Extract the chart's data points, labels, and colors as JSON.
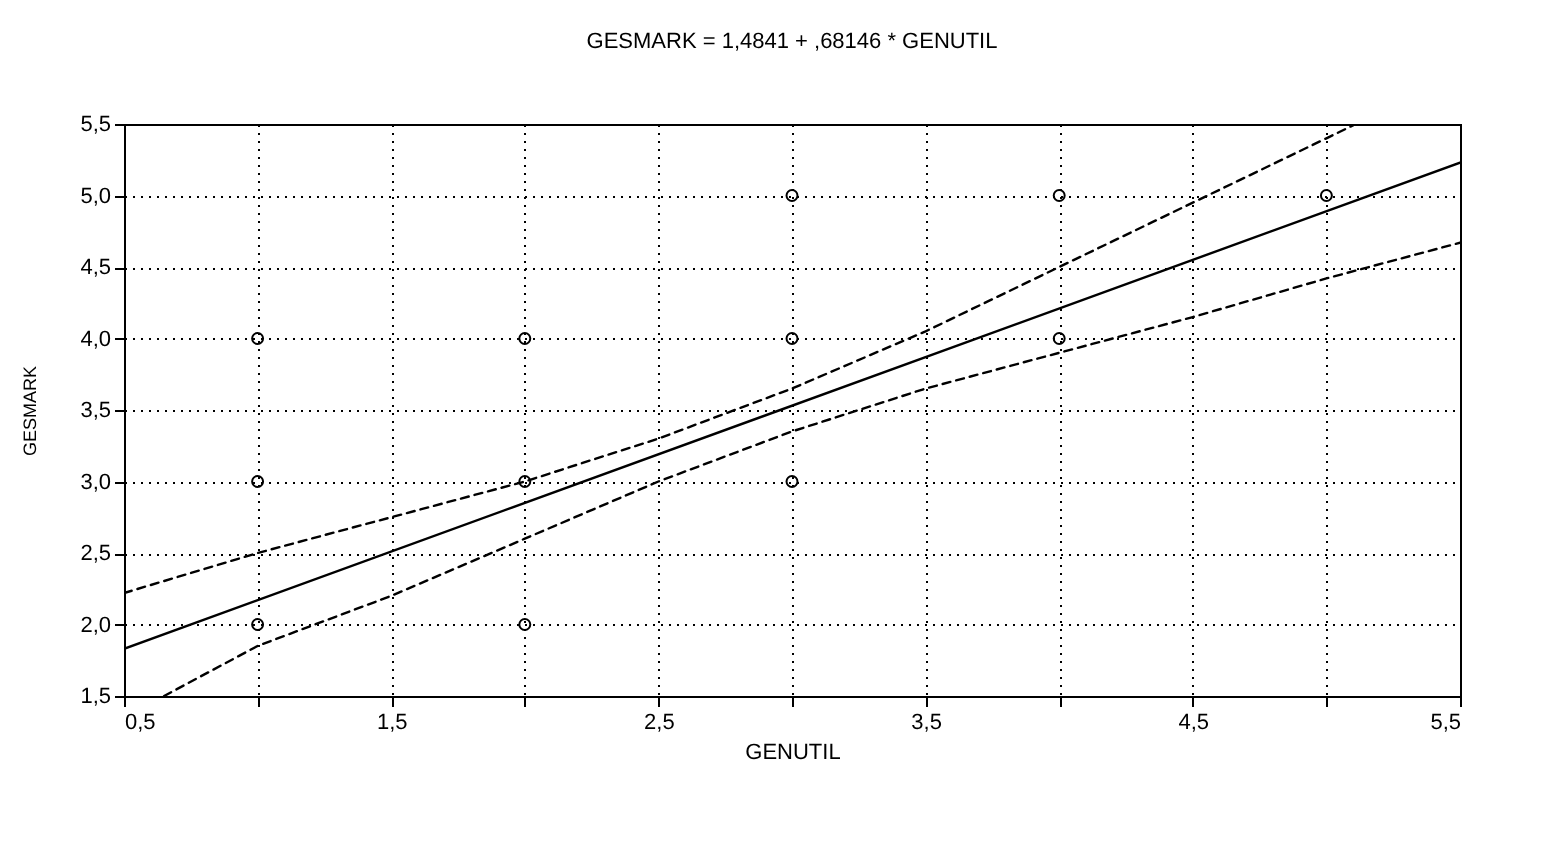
{
  "chart_data": {
    "type": "scatter",
    "title": "GESMARK = 1,4841 + ,68146 * GENUTIL",
    "xlabel": "GENUTIL",
    "ylabel": "GESMARK",
    "xlim": [
      0.5,
      5.5
    ],
    "ylim": [
      1.5,
      5.5
    ],
    "xticks": [
      {
        "value": 0.5,
        "label": "0,5"
      },
      {
        "value": 1,
        "label": null
      },
      {
        "value": 1.5,
        "label": "1,5"
      },
      {
        "value": 2,
        "label": null
      },
      {
        "value": 2.5,
        "label": "2,5"
      },
      {
        "value": 3,
        "label": null
      },
      {
        "value": 3.5,
        "label": "3,5"
      },
      {
        "value": 4,
        "label": null
      },
      {
        "value": 4.5,
        "label": "4,5"
      },
      {
        "value": 5,
        "label": null
      },
      {
        "value": 5.5,
        "label": "5,5"
      }
    ],
    "yticks": [
      {
        "value": 1.5,
        "label": "1,5"
      },
      {
        "value": 2,
        "label": "2,0"
      },
      {
        "value": 2.5,
        "label": "2,5"
      },
      {
        "value": 3,
        "label": "3,0"
      },
      {
        "value": 3.5,
        "label": "3,5"
      },
      {
        "value": 4,
        "label": "4,0"
      },
      {
        "value": 4.5,
        "label": "4,5"
      },
      {
        "value": 5,
        "label": "5,0"
      },
      {
        "value": 5.5,
        "label": "5,5"
      }
    ],
    "grid": true,
    "marker": "circle",
    "series": [
      {
        "color": "#000000",
        "x": [
          1,
          1,
          1,
          2,
          2,
          2,
          3,
          3,
          3,
          4,
          4,
          5
        ],
        "values": [
          2,
          3,
          4,
          2,
          3,
          4,
          3,
          4,
          5,
          4,
          5,
          5
        ]
      },
      {
        "type": "line",
        "marker": "none",
        "color": "#000000",
        "line_style": "solid",
        "x": [
          0.5,
          5.5
        ],
        "values": [
          1.83,
          5.23
        ]
      },
      {
        "type": "line",
        "marker": "none",
        "color": "#000000",
        "line_style": "dashed",
        "x": [
          0.5,
          1,
          1.5,
          2,
          2.5,
          3,
          3.5,
          4,
          4.5,
          5,
          5.11
        ],
        "values": [
          2.22,
          2.5,
          2.75,
          3.0,
          3.3,
          3.65,
          4.05,
          4.5,
          4.95,
          5.4,
          5.5
        ]
      },
      {
        "type": "line",
        "marker": "none",
        "color": "#000000",
        "line_style": "dashed",
        "x": [
          0.65,
          1,
          1.5,
          2,
          2.5,
          3,
          3.5,
          4,
          4.5,
          5,
          5.5
        ],
        "values": [
          1.5,
          1.85,
          2.2,
          2.6,
          3.0,
          3.35,
          3.65,
          3.9,
          4.15,
          4.42,
          4.67
        ]
      }
    ]
  }
}
